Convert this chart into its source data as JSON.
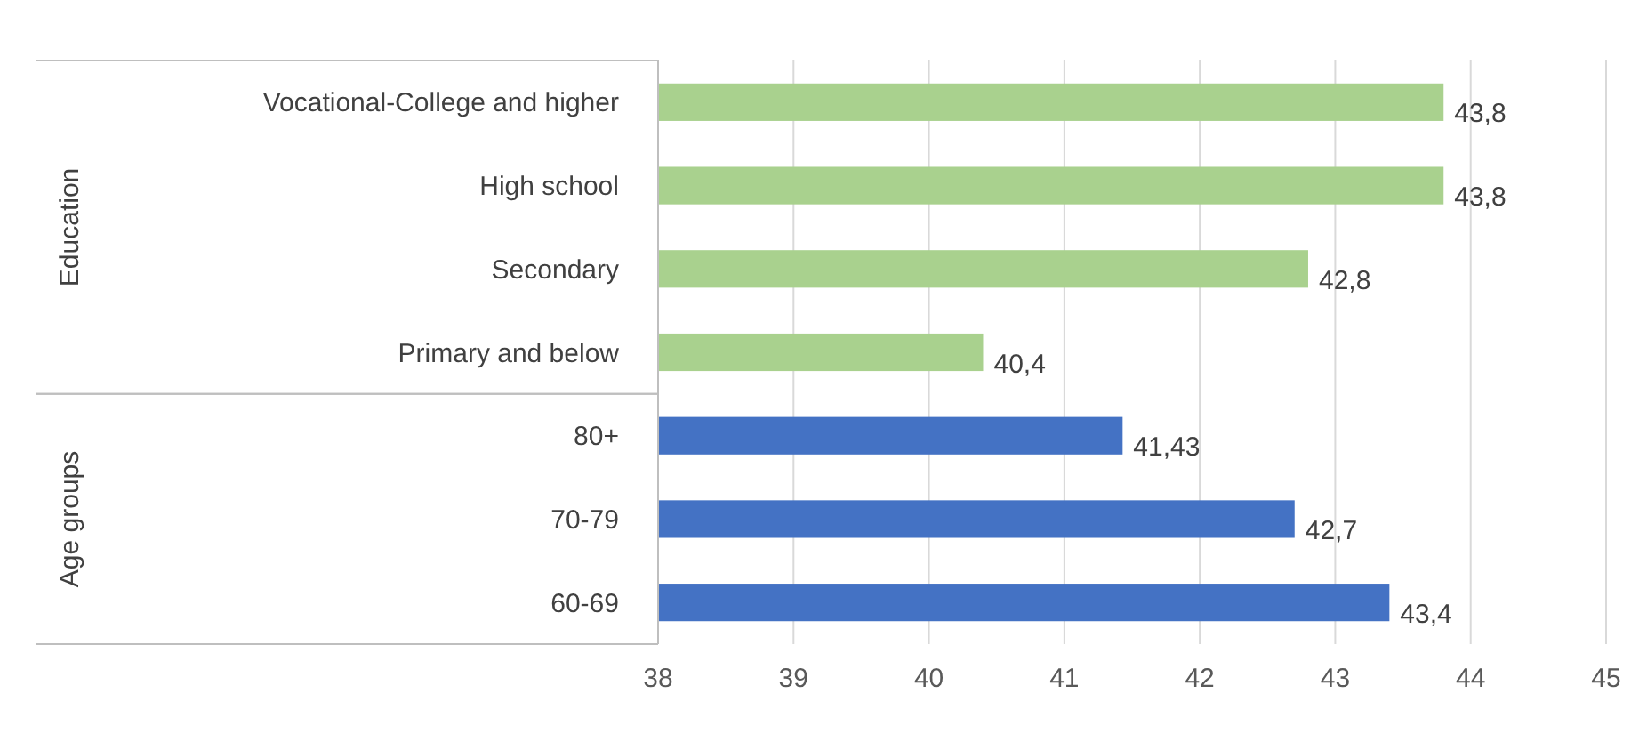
{
  "chart_data": {
    "type": "bar",
    "orientation": "horizontal",
    "categories": [
      "Vocational-College and higher",
      "High school",
      "Secondary",
      "Primary and below",
      "80+",
      "70-79",
      "60-69"
    ],
    "values": [
      43.8,
      43.8,
      42.8,
      40.4,
      41.43,
      42.7,
      43.4
    ],
    "value_labels": [
      "43,8",
      "43,8",
      "42,8",
      "40,4",
      "41,43",
      "42,7",
      "43,4"
    ],
    "colors": [
      "#a9d18e",
      "#a9d18e",
      "#a9d18e",
      "#a9d18e",
      "#4472c4",
      "#4472c4",
      "#4472c4"
    ],
    "annotations": [
      "Education",
      "Age groups"
    ],
    "xlim": [
      38,
      45
    ],
    "xticks": [
      38,
      39,
      40,
      41,
      42,
      43,
      44,
      45
    ],
    "grid": "x"
  }
}
